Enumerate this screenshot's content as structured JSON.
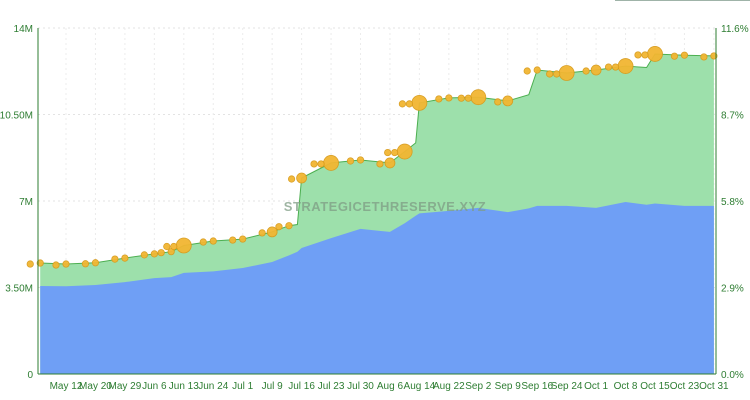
{
  "chart_data": {
    "type": "area",
    "stacked": false,
    "watermark": "STRATEGICETHRESERVE.XYZ",
    "x_tick_labels": [
      "May 12",
      "May 20",
      "May 29",
      "Jun 6",
      "Jun 13",
      "Jun 24",
      "Jul 1",
      "Jul 9",
      "Jul 16",
      "Jul 23",
      "Jul 30",
      "Aug 6",
      "Aug 14",
      "Aug 22",
      "Sep 2",
      "Sep 9",
      "Sep 16",
      "Sep 24",
      "Oct 1",
      "Oct 8",
      "Oct 15",
      "Oct 23",
      "Oct 31"
    ],
    "x_tick_dates": [
      "05-12",
      "05-20",
      "05-29",
      "06-06",
      "06-13",
      "06-24",
      "07-01",
      "07-09",
      "07-16",
      "07-23",
      "07-30",
      "08-06",
      "08-14",
      "08-22",
      "09-02",
      "09-09",
      "09-16",
      "09-24",
      "10-01",
      "10-08",
      "10-15",
      "10-23",
      "10-31"
    ],
    "y_left": {
      "ticks": [
        "0",
        "3.50M",
        "7M",
        "10.50M",
        "14M"
      ],
      "range": [
        0,
        14000000
      ]
    },
    "y_right": {
      "ticks": [
        "0.0%",
        "2.9%",
        "5.8%",
        "8.7%",
        "11.6%"
      ],
      "range": [
        0,
        11.6
      ]
    },
    "grid": true,
    "colors": {
      "total": "#9de0ab",
      "total_line": "#4caf50",
      "inner": "#6f9ff5",
      "markers": "#f2b632",
      "markers_stroke": "#d89b1c",
      "axis": "#2e7d32"
    },
    "points": [
      {
        "x": "05-05",
        "total": 4.49,
        "inner": 3.56,
        "marker": "small"
      },
      {
        "x": "05-12",
        "total": 4.45,
        "inner": 3.55,
        "marker": "small"
      },
      {
        "x": "05-20",
        "total": 4.5,
        "inner": 3.6,
        "marker": "small"
      },
      {
        "x": "05-29",
        "total": 4.69,
        "inner": 3.72,
        "marker": "small"
      },
      {
        "x": "06-06",
        "total": 4.86,
        "inner": 3.88,
        "marker": "small"
      },
      {
        "x": "06-10",
        "total": 4.95,
        "inner": 3.92,
        "marker": "small"
      },
      {
        "x": "06-13",
        "total": 5.2,
        "inner": 4.09,
        "marker": "large"
      },
      {
        "x": "06-24",
        "total": 5.38,
        "inner": 4.15,
        "marker": "small"
      },
      {
        "x": "07-01",
        "total": 5.46,
        "inner": 4.29,
        "marker": "small"
      },
      {
        "x": "07-09",
        "total": 5.75,
        "inner": 4.53,
        "marker": "medium"
      },
      {
        "x": "07-13",
        "total": 6.0,
        "inner": 4.8,
        "marker": "small"
      },
      {
        "x": "07-15",
        "total": 6.05,
        "inner": 4.95,
        "marker": "none"
      },
      {
        "x": "07-16",
        "total": 7.93,
        "inner": 5.1,
        "marker": "medium"
      },
      {
        "x": "07-23",
        "total": 8.54,
        "inner": 5.5,
        "marker": "large"
      },
      {
        "x": "07-30",
        "total": 8.66,
        "inner": 5.87,
        "marker": "small"
      },
      {
        "x": "08-06",
        "total": 8.54,
        "inner": 5.75,
        "marker": "medium"
      },
      {
        "x": "08-10",
        "total": 9.0,
        "inner": 6.1,
        "marker": "large"
      },
      {
        "x": "08-13",
        "total": 9.35,
        "inner": 6.4,
        "marker": "none"
      },
      {
        "x": "08-14",
        "total": 10.97,
        "inner": 6.5,
        "marker": "large"
      },
      {
        "x": "08-22",
        "total": 11.17,
        "inner": 6.6,
        "marker": "small"
      },
      {
        "x": "09-02",
        "total": 11.2,
        "inner": 6.72,
        "marker": "large"
      },
      {
        "x": "09-09",
        "total": 11.05,
        "inner": 6.55,
        "marker": "medium"
      },
      {
        "x": "09-14",
        "total": 11.3,
        "inner": 6.7,
        "marker": "none"
      },
      {
        "x": "09-16",
        "total": 12.3,
        "inner": 6.8,
        "marker": "small"
      },
      {
        "x": "09-24",
        "total": 12.18,
        "inner": 6.8,
        "marker": "large"
      },
      {
        "x": "10-01",
        "total": 12.3,
        "inner": 6.72,
        "marker": "medium"
      },
      {
        "x": "10-08",
        "total": 12.46,
        "inner": 6.96,
        "marker": "large"
      },
      {
        "x": "10-13",
        "total": 12.4,
        "inner": 6.85,
        "marker": "none"
      },
      {
        "x": "10-15",
        "total": 12.95,
        "inner": 6.9,
        "marker": "large"
      },
      {
        "x": "10-23",
        "total": 12.9,
        "inner": 6.8,
        "marker": "small"
      },
      {
        "x": "10-31",
        "total": 12.87,
        "inner": 6.8,
        "marker": "small"
      }
    ],
    "value_unit": "M"
  }
}
